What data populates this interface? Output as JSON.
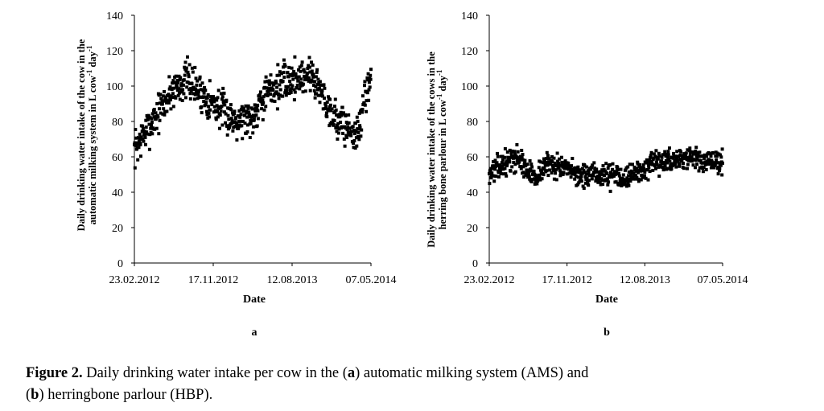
{
  "caption": {
    "label": "Figure 2.",
    "text_1": " Daily drinking water intake per cow in the (",
    "a": "a",
    "text_2": ") automatic milking system (AMS) and",
    "text_3": "(",
    "b": "b",
    "text_4": ") herringbone parlour (HBP)."
  },
  "chart_data": [
    {
      "type": "scatter",
      "panel": "a",
      "title": "",
      "xlabel": "Date",
      "ylabel_line1": "Daily drinking water intake of the cow in the",
      "ylabel_line2": "automatic milking system in L cow",
      "ylabel_unit_mid": " day",
      "ylabel_sup": "-1",
      "x_tick_labels": [
        "23.02.2012",
        "17.11.2012",
        "12.08.2013",
        "07.05.2014"
      ],
      "x_tick_values": [
        0,
        268,
        536,
        804
      ],
      "xlim": [
        0,
        804
      ],
      "ylim": [
        0,
        140
      ],
      "y_ticks": [
        0,
        20,
        40,
        60,
        80,
        100,
        120,
        140
      ],
      "marker": "square",
      "color": "#000000",
      "trend": [
        [
          0,
          64
        ],
        [
          30,
          72
        ],
        [
          60,
          80
        ],
        [
          100,
          90
        ],
        [
          130,
          98
        ],
        [
          180,
          104
        ],
        [
          220,
          97
        ],
        [
          270,
          90
        ],
        [
          330,
          82
        ],
        [
          400,
          82
        ],
        [
          430,
          93
        ],
        [
          480,
          100
        ],
        [
          540,
          104
        ],
        [
          600,
          107
        ],
        [
          640,
          95
        ],
        [
          680,
          82
        ],
        [
          740,
          74
        ],
        [
          760,
          72
        ],
        [
          790,
          100
        ],
        [
          804,
          104
        ]
      ],
      "spread": 10,
      "points_count": 700,
      "seed": 7
    },
    {
      "type": "scatter",
      "panel": "b",
      "title": "",
      "xlabel": "Date",
      "ylabel_line1": "Daily drinking water intake of the cows in the",
      "ylabel_line2": "herring bone parlour in L cow",
      "ylabel_unit_mid": " day",
      "ylabel_sup": "-1",
      "x_tick_labels": [
        "23.02.2012",
        "17.11.2012",
        "12.08.2013",
        "07.05.2014"
      ],
      "x_tick_values": [
        0,
        268,
        536,
        804
      ],
      "xlim": [
        0,
        804
      ],
      "ylim": [
        0,
        140
      ],
      "y_ticks": [
        0,
        20,
        40,
        60,
        80,
        100,
        120,
        140
      ],
      "marker": "square",
      "color": "#000000",
      "trend": [
        [
          0,
          51
        ],
        [
          30,
          54
        ],
        [
          60,
          57
        ],
        [
          100,
          60
        ],
        [
          130,
          52
        ],
        [
          160,
          49
        ],
        [
          200,
          56
        ],
        [
          240,
          55
        ],
        [
          270,
          52
        ],
        [
          330,
          49
        ],
        [
          400,
          50
        ],
        [
          470,
          49
        ],
        [
          520,
          52
        ],
        [
          560,
          55
        ],
        [
          620,
          58
        ],
        [
          680,
          60
        ],
        [
          740,
          57
        ],
        [
          790,
          57
        ],
        [
          804,
          58
        ]
      ],
      "spread": 6,
      "points_count": 700,
      "seed": 13
    }
  ],
  "panel_labels": {
    "a": "a",
    "b": "b"
  }
}
